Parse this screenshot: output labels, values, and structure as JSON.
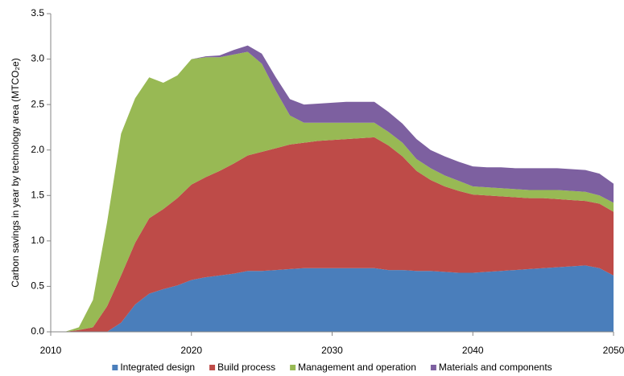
{
  "chart_data": {
    "type": "stacked-area",
    "y_label": "Carbon savings in year by technology area (MTCO₂e)",
    "x": [
      2011,
      2012,
      2013,
      2014,
      2015,
      2016,
      2017,
      2018,
      2019,
      2020,
      2021,
      2022,
      2023,
      2024,
      2025,
      2026,
      2027,
      2028,
      2029,
      2030,
      2031,
      2032,
      2033,
      2034,
      2035,
      2036,
      2037,
      2038,
      2039,
      2040,
      2041,
      2042,
      2043,
      2044,
      2045,
      2046,
      2047,
      2048,
      2049,
      2050
    ],
    "xlim": [
      2010,
      2050
    ],
    "xticks": [
      2010,
      2020,
      2030,
      2040,
      2050
    ],
    "ylim": [
      0,
      3.5
    ],
    "yticks": [
      {
        "value": 0,
        "label": "0.0"
      },
      {
        "value": 0.5,
        "label": "0.5"
      },
      {
        "value": 1,
        "label": "1.0"
      },
      {
        "value": 1.5,
        "label": "1.5"
      },
      {
        "value": 2,
        "label": "2.0"
      },
      {
        "value": 2.5,
        "label": "2.5"
      },
      {
        "value": 3,
        "label": "3.0"
      },
      {
        "value": 3.5,
        "label": "3.5"
      }
    ],
    "grid": false,
    "series": [
      {
        "name": "Integrated design",
        "color": "#4a7ebb",
        "values": [
          0,
          0,
          0,
          0,
          0.1,
          0.3,
          0.42,
          0.47,
          0.51,
          0.57,
          0.6,
          0.62,
          0.64,
          0.67,
          0.67,
          0.68,
          0.69,
          0.7,
          0.7,
          0.7,
          0.7,
          0.7,
          0.7,
          0.68,
          0.68,
          0.67,
          0.67,
          0.66,
          0.65,
          0.65,
          0.66,
          0.67,
          0.68,
          0.69,
          0.7,
          0.71,
          0.72,
          0.73,
          0.7,
          0.62
        ]
      },
      {
        "name": "Build process",
        "color": "#be4b48",
        "values": [
          0,
          0.02,
          0.05,
          0.28,
          0.52,
          0.68,
          0.83,
          0.88,
          0.96,
          1.05,
          1.1,
          1.15,
          1.21,
          1.27,
          1.31,
          1.34,
          1.37,
          1.38,
          1.4,
          1.41,
          1.42,
          1.43,
          1.44,
          1.37,
          1.25,
          1.1,
          1.0,
          0.94,
          0.9,
          0.86,
          0.84,
          0.82,
          0.8,
          0.78,
          0.77,
          0.75,
          0.73,
          0.71,
          0.71,
          0.7
        ]
      },
      {
        "name": "Management and operation",
        "color": "#98b954",
        "values": [
          0,
          0.03,
          0.3,
          0.92,
          1.56,
          1.59,
          1.55,
          1.39,
          1.35,
          1.38,
          1.32,
          1.25,
          1.2,
          1.14,
          0.97,
          0.63,
          0.32,
          0.22,
          0.2,
          0.19,
          0.18,
          0.17,
          0.16,
          0.15,
          0.15,
          0.13,
          0.13,
          0.12,
          0.11,
          0.09,
          0.09,
          0.09,
          0.09,
          0.09,
          0.09,
          0.1,
          0.1,
          0.1,
          0.09,
          0.1
        ]
      },
      {
        "name": "Materials and components",
        "color": "#7d60a0",
        "values": [
          0,
          0,
          0,
          0,
          0,
          0,
          0,
          0,
          0,
          0,
          0.01,
          0.02,
          0.05,
          0.07,
          0.11,
          0.15,
          0.18,
          0.2,
          0.21,
          0.22,
          0.23,
          0.23,
          0.23,
          0.22,
          0.21,
          0.22,
          0.2,
          0.21,
          0.21,
          0.22,
          0.22,
          0.23,
          0.23,
          0.24,
          0.24,
          0.24,
          0.24,
          0.24,
          0.24,
          0.21
        ]
      }
    ]
  }
}
